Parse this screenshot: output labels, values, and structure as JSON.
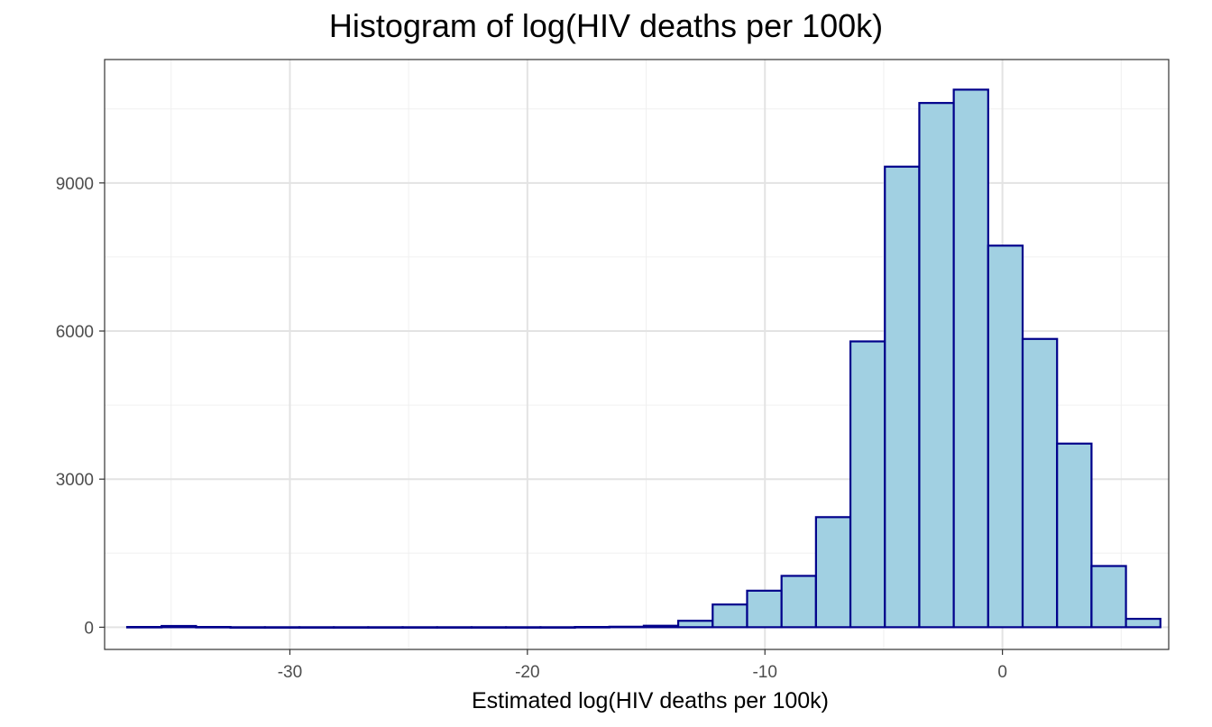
{
  "chart_data": {
    "type": "bar",
    "title": "Histogram of log(HIV deaths per 100k)",
    "xlabel": "Estimated log(HIV deaths per 100k)",
    "ylabel": "",
    "xlim": [
      -37.8,
      7.0
    ],
    "ylim": [
      -450,
      11500
    ],
    "x_ticks": [
      -30,
      -20,
      -10,
      0
    ],
    "x_tick_labels": [
      "-30",
      "-20",
      "-10",
      "0"
    ],
    "y_ticks": [
      0,
      3000,
      6000,
      9000
    ],
    "y_tick_labels": [
      "0",
      "3000",
      "6000",
      "9000"
    ],
    "grid": true,
    "legend": "none",
    "bin_width": 1.45,
    "bins": [
      {
        "start": -36.85,
        "end": -35.4,
        "count": 5
      },
      {
        "start": -35.4,
        "end": -33.95,
        "count": 25
      },
      {
        "start": -33.95,
        "end": -32.5,
        "count": 5
      },
      {
        "start": -32.5,
        "end": -31.05,
        "count": 0
      },
      {
        "start": -31.05,
        "end": -29.6,
        "count": 0
      },
      {
        "start": -29.6,
        "end": -28.15,
        "count": 0
      },
      {
        "start": -28.15,
        "end": -26.7,
        "count": 0
      },
      {
        "start": -26.7,
        "end": -25.25,
        "count": 0
      },
      {
        "start": -25.25,
        "end": -23.8,
        "count": 0
      },
      {
        "start": -23.8,
        "end": -22.35,
        "count": 0
      },
      {
        "start": -22.35,
        "end": -20.9,
        "count": 0
      },
      {
        "start": -20.9,
        "end": -19.45,
        "count": 0
      },
      {
        "start": -19.45,
        "end": -18.0,
        "count": 0
      },
      {
        "start": -18.0,
        "end": -16.55,
        "count": 5
      },
      {
        "start": -16.55,
        "end": -15.1,
        "count": 10
      },
      {
        "start": -15.1,
        "end": -13.65,
        "count": 30
      },
      {
        "start": -13.65,
        "end": -12.2,
        "count": 130
      },
      {
        "start": -12.2,
        "end": -10.75,
        "count": 460
      },
      {
        "start": -10.75,
        "end": -9.3,
        "count": 740
      },
      {
        "start": -9.3,
        "end": -7.85,
        "count": 1040
      },
      {
        "start": -7.85,
        "end": -6.4,
        "count": 2230
      },
      {
        "start": -6.4,
        "end": -4.95,
        "count": 5790
      },
      {
        "start": -4.95,
        "end": -3.5,
        "count": 9330
      },
      {
        "start": -3.5,
        "end": -2.05,
        "count": 10620
      },
      {
        "start": -2.05,
        "end": -0.6,
        "count": 10890
      },
      {
        "start": -0.6,
        "end": 0.85,
        "count": 7730
      },
      {
        "start": 0.85,
        "end": 2.3,
        "count": 5840
      },
      {
        "start": 2.3,
        "end": 3.75,
        "count": 3720
      },
      {
        "start": 3.75,
        "end": 5.2,
        "count": 1240
      },
      {
        "start": 5.2,
        "end": 6.65,
        "count": 170
      }
    ],
    "colors": {
      "bar_fill": "#a1d0e2",
      "bar_stroke": "#00008b",
      "grid_major": "#e3e3e3",
      "grid_minor": "#f0f0f0",
      "panel_border": "#333333",
      "tick_text": "#4d4d4d"
    }
  }
}
